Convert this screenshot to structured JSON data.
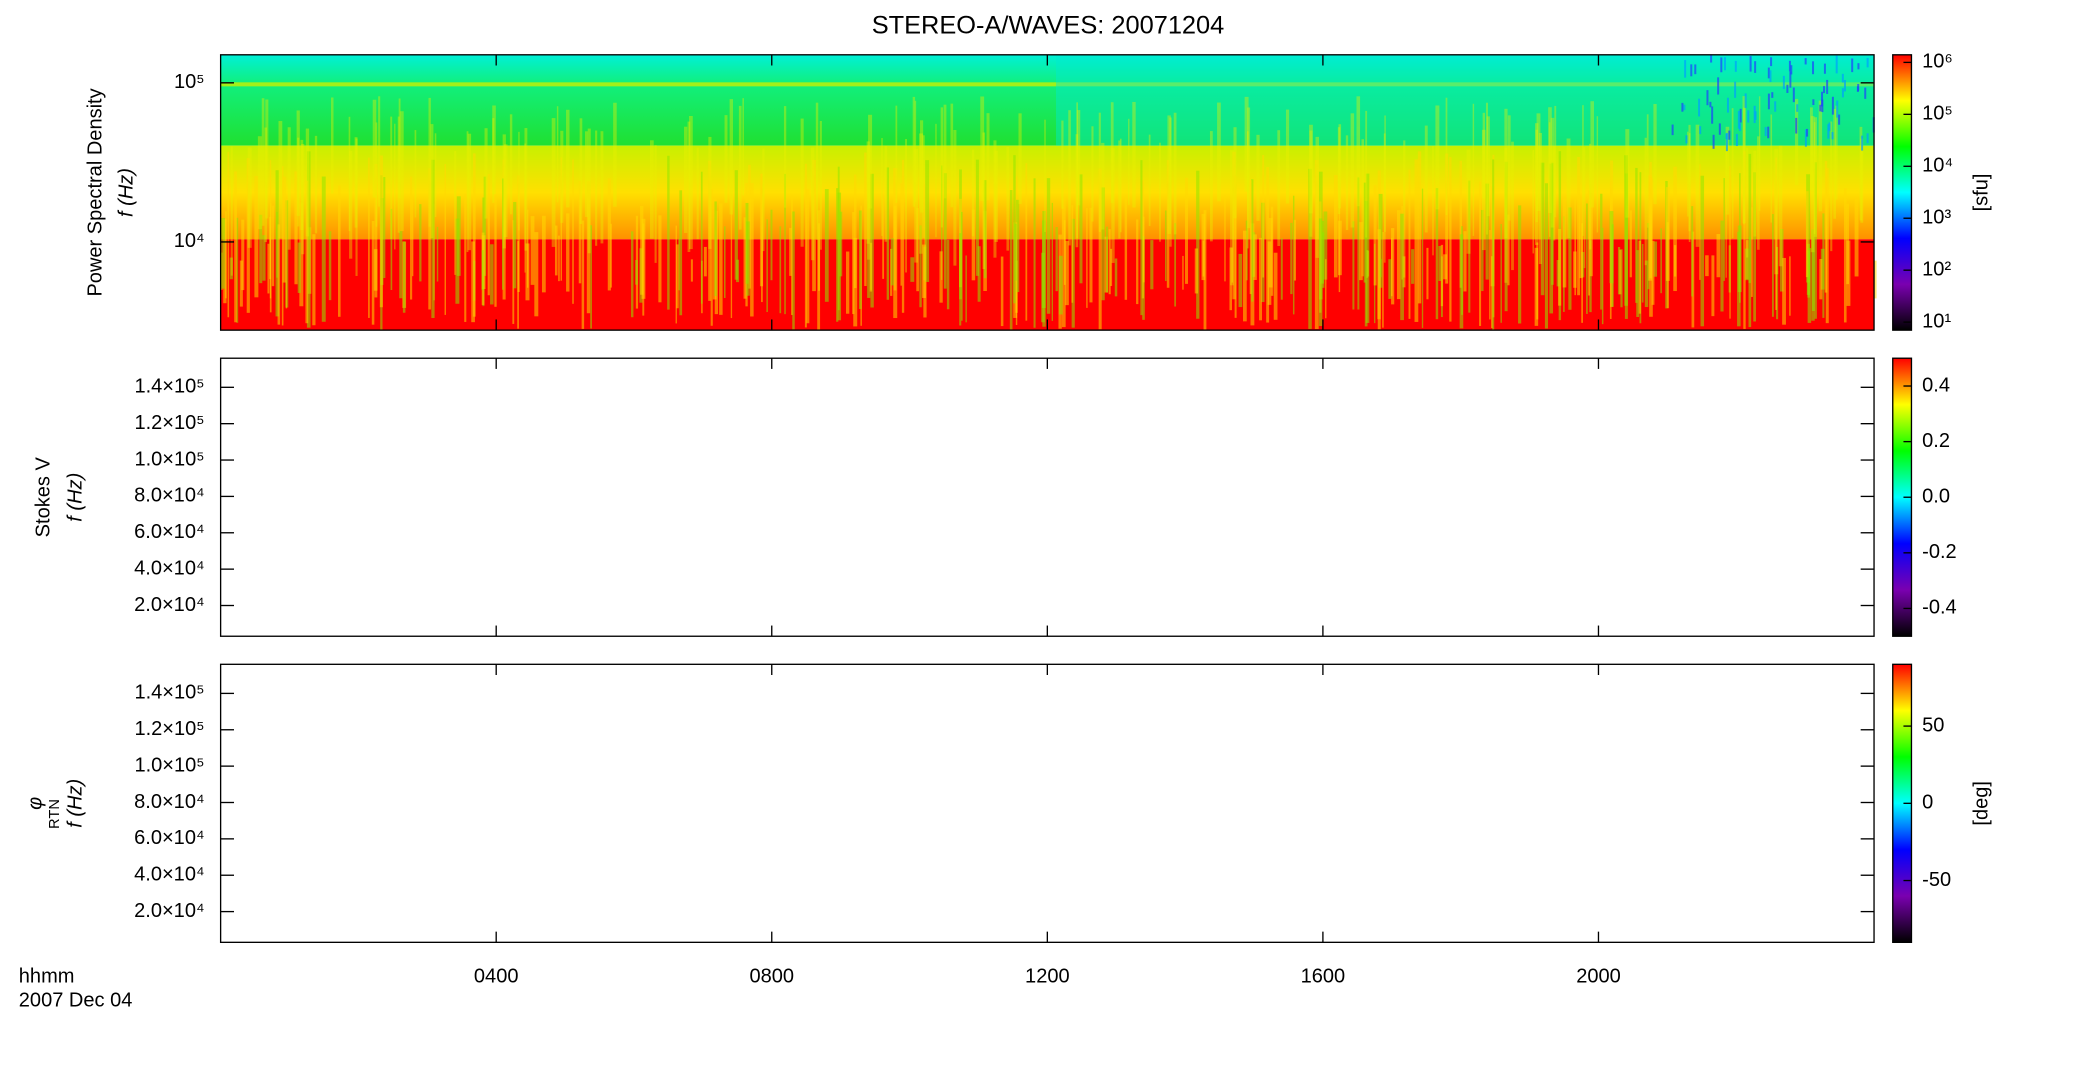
{
  "chart_data": [
    {
      "type": "spectrogram",
      "title": "STEREO-A/WAVES: 20071204",
      "ylabel": [
        "Power Spectral Density",
        "f (Hz)"
      ],
      "yscale": "log",
      "ylim": [
        2790,
        150000
      ],
      "yticks": [
        {
          "value": 10000,
          "label": "10⁴"
        },
        {
          "value": 100000,
          "label": "10⁵"
        }
      ],
      "xlim": [
        0,
        24
      ],
      "xticks": [
        {
          "value": 4,
          "label": "0400"
        },
        {
          "value": 8,
          "label": "0800"
        },
        {
          "value": 12,
          "label": "1200"
        },
        {
          "value": 16,
          "label": "1600"
        },
        {
          "value": 20,
          "label": "2000"
        }
      ],
      "xlabel": [
        "hhmm",
        "2007 Dec 04"
      ],
      "colormap": [
        "#000000",
        "#7a00b0",
        "#0000ff",
        "#00ffff",
        "#00ff00",
        "#ffff00",
        "#ff0000"
      ],
      "colorbar": {
        "label": "[sfu]",
        "scale": "log",
        "clim": [
          7,
          1400000
        ],
        "ticks": [
          {
            "value": 10,
            "label": "10¹"
          },
          {
            "value": 100,
            "label": "10²"
          },
          {
            "value": 1000,
            "label": "10³"
          },
          {
            "value": 10000,
            "label": "10⁴"
          },
          {
            "value": 100000,
            "label": "10⁵"
          },
          {
            "value": 1000000,
            "label": "10⁶"
          }
        ]
      }
    },
    {
      "type": "spectrogram",
      "ylabel": [
        "Stokes V",
        "f (Hz)"
      ],
      "yscale": "linear",
      "ylim": [
        3100,
        156000
      ],
      "yticks": [
        {
          "value": 20000,
          "label": "2.0×10⁴"
        },
        {
          "value": 40000,
          "label": "4.0×10⁴"
        },
        {
          "value": 60000,
          "label": "6.0×10⁴"
        },
        {
          "value": 80000,
          "label": "8.0×10⁴"
        },
        {
          "value": 100000,
          "label": "1.0×10⁵"
        },
        {
          "value": 120000,
          "label": "1.2×10⁵"
        },
        {
          "value": 140000,
          "label": "1.4×10⁵"
        }
      ],
      "colorbar": {
        "scale": "linear",
        "clim": [
          -0.5,
          0.5
        ],
        "ticks": [
          -0.4,
          -0.2,
          {
            "value": 0,
            "label": "0.0"
          },
          0.2,
          0.4
        ]
      }
    },
    {
      "type": "spectrogram",
      "ylabel": [
        "φ",
        "f (Hz)"
      ],
      "ylabel_sub": "RTN",
      "yscale": "linear",
      "ylim": [
        3100,
        156000
      ],
      "yticks": [
        {
          "value": 20000,
          "label": "2.0×10⁴"
        },
        {
          "value": 40000,
          "label": "4.0×10⁴"
        },
        {
          "value": 60000,
          "label": "6.0×10⁴"
        },
        {
          "value": 80000,
          "label": "8.0×10⁴"
        },
        {
          "value": 100000,
          "label": "1.0×10⁵"
        },
        {
          "value": 120000,
          "label": "1.2×10⁵"
        },
        {
          "value": 140000,
          "label": "1.4×10⁵"
        }
      ],
      "colorbar": {
        "label": "[deg]",
        "scale": "linear",
        "clim": [
          -90,
          90
        ],
        "ticks": [
          -50,
          0,
          50
        ]
      }
    }
  ]
}
